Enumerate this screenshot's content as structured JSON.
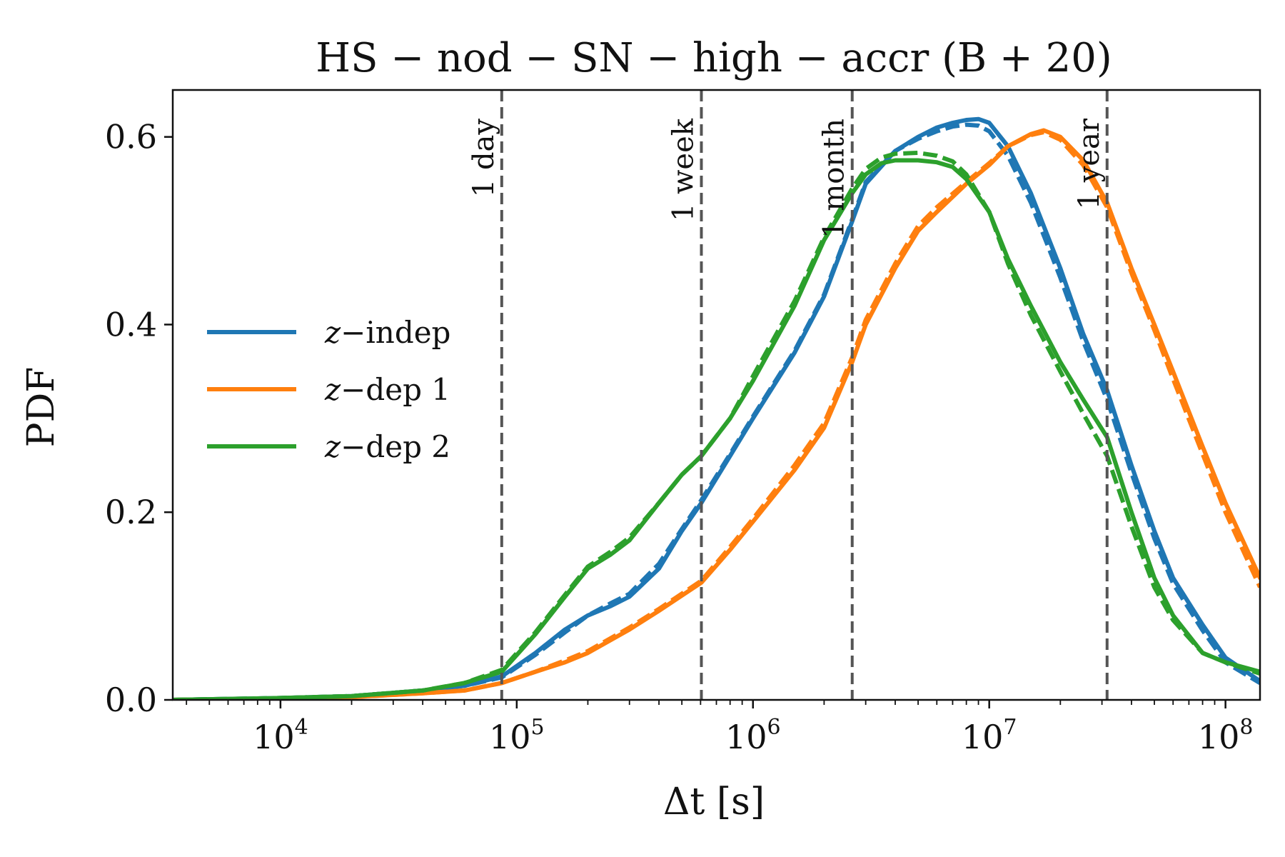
{
  "chart_data": {
    "type": "line",
    "title": "HS − nod − SN − high − accr (B + 20)",
    "xlabel": "Δt [s]",
    "ylabel": "PDF",
    "xscale": "log",
    "xlim": [
      3500,
      140000000
    ],
    "ylim": [
      0,
      0.65
    ],
    "xticks": [
      {
        "value": 10000,
        "base": "10",
        "exp": "4"
      },
      {
        "value": 100000,
        "base": "10",
        "exp": "5"
      },
      {
        "value": 1000000,
        "base": "10",
        "exp": "6"
      },
      {
        "value": 10000000,
        "base": "10",
        "exp": "7"
      },
      {
        "value": 100000000,
        "base": "10",
        "exp": "8"
      }
    ],
    "yticks": [
      {
        "value": 0.0,
        "label": "0.0"
      },
      {
        "value": 0.2,
        "label": "0.2"
      },
      {
        "value": 0.4,
        "label": "0.4"
      },
      {
        "value": 0.6,
        "label": "0.6"
      }
    ],
    "grid": false,
    "legend_position": "center-left",
    "reference_lines": [
      {
        "x": 86400,
        "label": "1 day"
      },
      {
        "x": 604800,
        "label": "1 week"
      },
      {
        "x": 2630000,
        "label": "1 month"
      },
      {
        "x": 31536000,
        "label": "1 year"
      }
    ],
    "series": [
      {
        "name": "z−indep",
        "legend_label": "z−indep",
        "color": "#1f77b4",
        "x": [
          3500,
          10000,
          20000,
          40000,
          60000,
          86400,
          120000,
          160000,
          200000,
          250000,
          300000,
          400000,
          500000,
          604800,
          800000,
          1000000,
          1500000,
          2000000,
          2630000,
          3000000,
          4000000,
          5000000,
          6000000,
          7000000,
          8000000,
          9000000,
          10000000,
          12000000,
          15000000,
          20000000,
          25000000,
          31536000,
          40000000,
          50000000,
          60000000,
          80000000,
          100000000,
          140000000
        ],
        "values": [
          0.0,
          0.002,
          0.004,
          0.01,
          0.015,
          0.025,
          0.05,
          0.075,
          0.09,
          0.1,
          0.11,
          0.14,
          0.18,
          0.21,
          0.26,
          0.3,
          0.37,
          0.43,
          0.51,
          0.55,
          0.585,
          0.6,
          0.61,
          0.615,
          0.618,
          0.619,
          0.615,
          0.59,
          0.54,
          0.46,
          0.39,
          0.33,
          0.25,
          0.18,
          0.13,
          0.08,
          0.045,
          0.02
        ],
        "dashed_values": [
          0.0,
          0.002,
          0.004,
          0.01,
          0.015,
          0.024,
          0.048,
          0.072,
          0.09,
          0.103,
          0.113,
          0.145,
          0.182,
          0.213,
          0.262,
          0.302,
          0.372,
          0.432,
          0.512,
          0.552,
          0.585,
          0.598,
          0.606,
          0.611,
          0.613,
          0.612,
          0.606,
          0.58,
          0.53,
          0.45,
          0.382,
          0.32,
          0.242,
          0.172,
          0.124,
          0.074,
          0.04,
          0.018
        ]
      },
      {
        "name": "z−dep 1",
        "legend_label": "z−dep 1",
        "color": "#ff7f0e",
        "x": [
          3500,
          10000,
          20000,
          40000,
          60000,
          86400,
          120000,
          160000,
          200000,
          300000,
          400000,
          604800,
          800000,
          1000000,
          1500000,
          2000000,
          2630000,
          3000000,
          4000000,
          5000000,
          6000000,
          8000000,
          10000000,
          12000000,
          15000000,
          17000000,
          20000000,
          25000000,
          31536000,
          40000000,
          50000000,
          60000000,
          80000000,
          100000000,
          140000000
        ],
        "values": [
          0.0,
          0.001,
          0.003,
          0.007,
          0.01,
          0.018,
          0.03,
          0.04,
          0.05,
          0.075,
          0.095,
          0.125,
          0.16,
          0.19,
          0.245,
          0.29,
          0.36,
          0.4,
          0.46,
          0.5,
          0.52,
          0.55,
          0.57,
          0.59,
          0.603,
          0.607,
          0.6,
          0.575,
          0.53,
          0.46,
          0.4,
          0.35,
          0.27,
          0.21,
          0.13
        ],
        "dashed_values": [
          0.0,
          0.001,
          0.003,
          0.007,
          0.01,
          0.018,
          0.03,
          0.042,
          0.052,
          0.077,
          0.097,
          0.127,
          0.163,
          0.193,
          0.25,
          0.295,
          0.365,
          0.405,
          0.465,
          0.505,
          0.525,
          0.552,
          0.572,
          0.59,
          0.602,
          0.605,
          0.597,
          0.57,
          0.525,
          0.455,
          0.394,
          0.342,
          0.262,
          0.2,
          0.12
        ]
      },
      {
        "name": "z−dep 2",
        "legend_label": "z−dep 2",
        "color": "#2ca02c",
        "x": [
          3500,
          10000,
          20000,
          40000,
          60000,
          86400,
          120000,
          160000,
          200000,
          250000,
          300000,
          400000,
          500000,
          604800,
          800000,
          1000000,
          1500000,
          2000000,
          2630000,
          3000000,
          3500000,
          4000000,
          5000000,
          6000000,
          7000000,
          8000000,
          10000000,
          12000000,
          15000000,
          20000000,
          25000000,
          31536000,
          40000000,
          50000000,
          60000000,
          80000000,
          100000000,
          140000000
        ],
        "values": [
          0.0,
          0.002,
          0.004,
          0.01,
          0.018,
          0.03,
          0.07,
          0.11,
          0.14,
          0.155,
          0.17,
          0.21,
          0.24,
          0.26,
          0.3,
          0.34,
          0.42,
          0.49,
          0.54,
          0.56,
          0.572,
          0.575,
          0.575,
          0.573,
          0.568,
          0.555,
          0.52,
          0.47,
          0.42,
          0.36,
          0.32,
          0.28,
          0.2,
          0.13,
          0.09,
          0.05,
          0.04,
          0.03
        ],
        "dashed_values": [
          0.0,
          0.002,
          0.004,
          0.01,
          0.018,
          0.032,
          0.072,
          0.112,
          0.142,
          0.158,
          0.173,
          0.21,
          0.24,
          0.26,
          0.3,
          0.345,
          0.425,
          0.493,
          0.545,
          0.566,
          0.578,
          0.582,
          0.583,
          0.58,
          0.574,
          0.56,
          0.52,
          0.465,
          0.41,
          0.35,
          0.305,
          0.26,
          0.185,
          0.12,
          0.085,
          0.05,
          0.04,
          0.028
        ]
      }
    ]
  }
}
